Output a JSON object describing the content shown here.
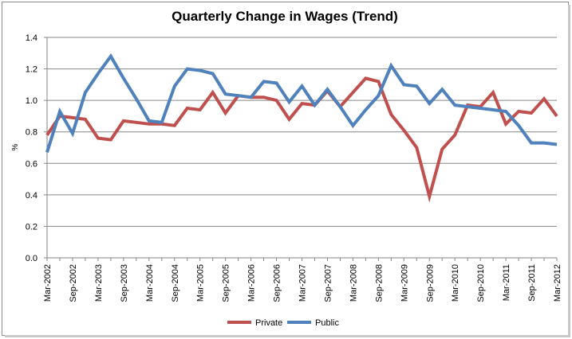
{
  "chart_data": {
    "type": "line",
    "title": "Quarterly Change in Wages (Trend)",
    "xlabel": "",
    "ylabel": "%",
    "ylim": [
      0,
      1.4
    ],
    "yticks": [
      "0.0",
      "0.2",
      "0.4",
      "0.6",
      "0.8",
      "1.0",
      "1.2",
      "1.4"
    ],
    "grid": "horizontal",
    "legend_position": "bottom",
    "xtick_labels": [
      "Mar-2002",
      "Sep-2002",
      "Mar-2003",
      "Sep-2003",
      "Mar-2004",
      "Sep-2004",
      "Mar-2005",
      "Sep-2005",
      "Mar-2006",
      "Sep-2006",
      "Mar-2007",
      "Sep-2007",
      "Mar-2008",
      "Sep-2008",
      "Mar-2009",
      "Sep-2009",
      "Mar-2010",
      "Sep-2010",
      "Mar-2011",
      "Sep-2011",
      "Mar-2012"
    ],
    "x": [
      "Mar-2002",
      "Jun-2002",
      "Sep-2002",
      "Dec-2002",
      "Mar-2003",
      "Jun-2003",
      "Sep-2003",
      "Dec-2003",
      "Mar-2004",
      "Jun-2004",
      "Sep-2004",
      "Dec-2004",
      "Mar-2005",
      "Jun-2005",
      "Sep-2005",
      "Dec-2005",
      "Mar-2006",
      "Jun-2006",
      "Sep-2006",
      "Dec-2006",
      "Mar-2007",
      "Jun-2007",
      "Sep-2007",
      "Dec-2007",
      "Mar-2008",
      "Jun-2008",
      "Sep-2008",
      "Dec-2008",
      "Mar-2009",
      "Jun-2009",
      "Sep-2009",
      "Dec-2009",
      "Mar-2010",
      "Jun-2010",
      "Sep-2010",
      "Dec-2010",
      "Mar-2011",
      "Jun-2011",
      "Sep-2011",
      "Dec-2011",
      "Mar-2012"
    ],
    "series": [
      {
        "name": "Private",
        "color": "#c0504d",
        "values": [
          0.78,
          0.9,
          0.89,
          0.88,
          0.76,
          0.75,
          0.87,
          0.86,
          0.85,
          0.85,
          0.84,
          0.95,
          0.94,
          1.05,
          0.92,
          1.03,
          1.02,
          1.02,
          1.0,
          0.88,
          0.98,
          0.97,
          1.06,
          0.96,
          1.05,
          1.14,
          1.12,
          0.91,
          0.81,
          0.7,
          0.39,
          0.69,
          0.78,
          0.97,
          0.96,
          1.05,
          0.85,
          0.93,
          0.92,
          1.01,
          0.9
        ]
      },
      {
        "name": "Public",
        "color": "#4f81bd",
        "values": [
          0.67,
          0.93,
          0.79,
          1.05,
          1.17,
          1.28,
          1.14,
          1.01,
          0.87,
          0.86,
          1.09,
          1.2,
          1.19,
          1.17,
          1.04,
          1.03,
          1.02,
          1.12,
          1.11,
          0.99,
          1.09,
          0.97,
          1.07,
          0.96,
          0.84,
          0.94,
          1.03,
          1.22,
          1.1,
          1.09,
          0.98,
          1.07,
          0.97,
          0.96,
          0.95,
          0.94,
          0.93,
          0.84,
          0.73,
          0.73,
          0.72
        ]
      }
    ]
  }
}
